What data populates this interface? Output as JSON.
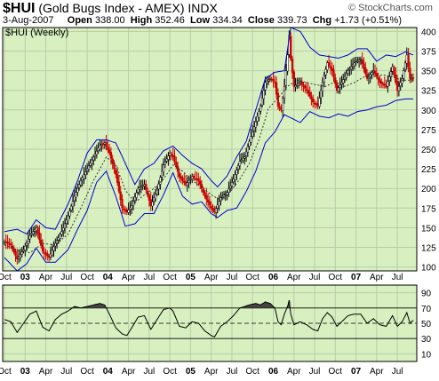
{
  "header": {
    "symbol": "$HUI",
    "name": "(Gold Bugs Index - AMEX)",
    "exchange": "INDX",
    "site": "© StockCharts.com",
    "date": "3-Aug-2007",
    "open_label": "Open",
    "open": "338.00",
    "high_label": "High",
    "high": "352.46",
    "low_label": "Low",
    "low": "334.34",
    "close_label": "Close",
    "close": "339.73",
    "chg_label": "Chg",
    "chg": "+1.73 (+0.51%)",
    "panel_label": "$HUI (Weekly)"
  },
  "colors": {
    "panel_bg": "#d8f0c0",
    "grid": "#b8cca8",
    "up_bar": "#000000",
    "down_bar": "#cc0000",
    "bollinger_band": "#0000cc",
    "moving_average": "#333333",
    "rsi_line": "#000000",
    "rsi_fill": "#444444"
  },
  "chart_data": [
    {
      "type": "candlestick",
      "title": "$HUI (Weekly)",
      "y_axis_side": "right",
      "ylim": [
        95,
        405
      ],
      "y_ticks": [
        100,
        125,
        150,
        175,
        200,
        225,
        250,
        275,
        300,
        325,
        350,
        375,
        400
      ],
      "x_ticks": [
        "Oct",
        "03",
        "Apr",
        "Jul",
        "Oct",
        "04",
        "Apr",
        "Jul",
        "Oct",
        "05",
        "Apr",
        "Jul",
        "Oct",
        "06",
        "Apr",
        "Jul",
        "Oct",
        "07",
        "Apr",
        "Jul"
      ],
      "bold_x_ticks": [
        "03",
        "04",
        "05",
        "06",
        "07"
      ],
      "x_range_weeks": [
        0,
        257
      ],
      "x_tick_weeks": [
        0,
        13,
        26,
        39,
        52,
        65,
        78,
        91,
        104,
        117,
        130,
        143,
        156,
        169,
        182,
        195,
        208,
        221,
        234,
        247
      ],
      "close_anchors": [
        [
          0,
          132
        ],
        [
          4,
          128
        ],
        [
          8,
          110
        ],
        [
          12,
          122
        ],
        [
          16,
          140
        ],
        [
          20,
          150
        ],
        [
          24,
          120
        ],
        [
          28,
          112
        ],
        [
          32,
          130
        ],
        [
          36,
          145
        ],
        [
          40,
          165
        ],
        [
          44,
          190
        ],
        [
          48,
          210
        ],
        [
          52,
          225
        ],
        [
          56,
          240
        ],
        [
          60,
          255
        ],
        [
          63,
          258
        ],
        [
          66,
          245
        ],
        [
          70,
          218
        ],
        [
          74,
          175
        ],
        [
          77,
          170
        ],
        [
          80,
          178
        ],
        [
          84,
          200
        ],
        [
          88,
          205
        ],
        [
          92,
          178
        ],
        [
          96,
          198
        ],
        [
          100,
          230
        ],
        [
          104,
          245
        ],
        [
          106,
          240
        ],
        [
          110,
          215
        ],
        [
          114,
          205
        ],
        [
          118,
          215
        ],
        [
          122,
          210
        ],
        [
          126,
          190
        ],
        [
          130,
          175
        ],
        [
          132,
          170
        ],
        [
          136,
          188
        ],
        [
          140,
          195
        ],
        [
          144,
          212
        ],
        [
          148,
          235
        ],
        [
          151,
          240
        ],
        [
          154,
          260
        ],
        [
          158,
          285
        ],
        [
          161,
          305
        ],
        [
          164,
          335
        ],
        [
          167,
          340
        ],
        [
          170,
          335
        ],
        [
          172,
          305
        ],
        [
          174,
          300
        ],
        [
          176,
          330
        ],
        [
          178,
          370
        ],
        [
          179,
          395
        ],
        [
          180,
          365
        ],
        [
          182,
          330
        ],
        [
          186,
          335
        ],
        [
          190,
          325
        ],
        [
          194,
          310
        ],
        [
          197,
          305
        ],
        [
          200,
          335
        ],
        [
          203,
          360
        ],
        [
          206,
          350
        ],
        [
          209,
          325
        ],
        [
          212,
          335
        ],
        [
          216,
          350
        ],
        [
          220,
          360
        ],
        [
          224,
          365
        ],
        [
          228,
          340
        ],
        [
          232,
          350
        ],
        [
          236,
          335
        ],
        [
          240,
          330
        ],
        [
          244,
          355
        ],
        [
          247,
          325
        ],
        [
          250,
          340
        ],
        [
          253,
          370
        ],
        [
          255,
          340
        ],
        [
          257,
          340
        ]
      ],
      "bollinger_upper_anchors": [
        [
          0,
          145
        ],
        [
          8,
          148
        ],
        [
          14,
          142
        ],
        [
          20,
          160
        ],
        [
          26,
          150
        ],
        [
          32,
          148
        ],
        [
          40,
          180
        ],
        [
          46,
          210
        ],
        [
          52,
          245
        ],
        [
          58,
          262
        ],
        [
          64,
          262
        ],
        [
          70,
          258
        ],
        [
          76,
          232
        ],
        [
          82,
          205
        ],
        [
          88,
          225
        ],
        [
          94,
          232
        ],
        [
          100,
          248
        ],
        [
          106,
          254
        ],
        [
          112,
          242
        ],
        [
          118,
          232
        ],
        [
          124,
          225
        ],
        [
          130,
          210
        ],
        [
          134,
          202
        ],
        [
          140,
          216
        ],
        [
          146,
          240
        ],
        [
          152,
          260
        ],
        [
          158,
          300
        ],
        [
          164,
          340
        ],
        [
          170,
          348
        ],
        [
          176,
          350
        ],
        [
          180,
          405
        ],
        [
          186,
          400
        ],
        [
          192,
          380
        ],
        [
          198,
          370
        ],
        [
          204,
          368
        ],
        [
          210,
          366
        ],
        [
          216,
          370
        ],
        [
          222,
          378
        ],
        [
          228,
          378
        ],
        [
          234,
          362
        ],
        [
          240,
          370
        ],
        [
          246,
          368
        ],
        [
          252,
          374
        ],
        [
          257,
          370
        ]
      ],
      "bollinger_lower_anchors": [
        [
          0,
          112
        ],
        [
          8,
          95
        ],
        [
          14,
          104
        ],
        [
          20,
          124
        ],
        [
          26,
          106
        ],
        [
          32,
          106
        ],
        [
          40,
          122
        ],
        [
          46,
          148
        ],
        [
          52,
          172
        ],
        [
          58,
          208
        ],
        [
          64,
          222
        ],
        [
          70,
          190
        ],
        [
          76,
          152
        ],
        [
          82,
          155
        ],
        [
          88,
          168
        ],
        [
          94,
          168
        ],
        [
          100,
          192
        ],
        [
          106,
          220
        ],
        [
          112,
          190
        ],
        [
          118,
          180
        ],
        [
          124,
          183
        ],
        [
          130,
          168
        ],
        [
          134,
          163
        ],
        [
          140,
          172
        ],
        [
          146,
          175
        ],
        [
          152,
          196
        ],
        [
          158,
          222
        ],
        [
          164,
          258
        ],
        [
          170,
          272
        ],
        [
          176,
          294
        ],
        [
          180,
          290
        ],
        [
          186,
          284
        ],
        [
          192,
          298
        ],
        [
          198,
          292
        ],
        [
          204,
          290
        ],
        [
          210,
          295
        ],
        [
          216,
          292
        ],
        [
          222,
          298
        ],
        [
          228,
          300
        ],
        [
          234,
          304
        ],
        [
          240,
          306
        ],
        [
          246,
          312
        ],
        [
          252,
          314
        ],
        [
          257,
          314
        ]
      ],
      "moving_average_anchors": [
        [
          0,
          128
        ],
        [
          8,
          122
        ],
        [
          16,
          118
        ],
        [
          24,
          130
        ],
        [
          32,
          128
        ],
        [
          40,
          142
        ],
        [
          48,
          175
        ],
        [
          56,
          210
        ],
        [
          64,
          240
        ],
        [
          70,
          230
        ],
        [
          76,
          198
        ],
        [
          82,
          182
        ],
        [
          88,
          192
        ],
        [
          94,
          200
        ],
        [
          100,
          212
        ],
        [
          106,
          230
        ],
        [
          112,
          222
        ],
        [
          118,
          210
        ],
        [
          124,
          202
        ],
        [
          130,
          192
        ],
        [
          136,
          185
        ],
        [
          142,
          196
        ],
        [
          148,
          212
        ],
        [
          154,
          232
        ],
        [
          160,
          262
        ],
        [
          166,
          302
        ],
        [
          172,
          315
        ],
        [
          178,
          330
        ],
        [
          184,
          338
        ],
        [
          190,
          335
        ],
        [
          196,
          332
        ],
        [
          202,
          330
        ],
        [
          208,
          336
        ],
        [
          214,
          330
        ],
        [
          220,
          335
        ],
        [
          226,
          342
        ],
        [
          232,
          342
        ],
        [
          238,
          345
        ],
        [
          244,
          342
        ],
        [
          250,
          338
        ],
        [
          257,
          338
        ]
      ]
    },
    {
      "type": "line",
      "title": "RSI",
      "y_axis_side": "right",
      "ylim": [
        0,
        100
      ],
      "y_ticks": [
        10,
        30,
        50,
        70,
        90
      ],
      "reference_lines": [
        30,
        50,
        70
      ],
      "x_ticks": [
        "Oct",
        "03",
        "Apr",
        "Jul",
        "Oct",
        "04",
        "Apr",
        "Jul",
        "Oct",
        "05",
        "Apr",
        "Jul",
        "Oct",
        "06",
        "Apr",
        "Jul",
        "Oct",
        "07",
        "Apr",
        "Jul"
      ],
      "bold_x_ticks": [
        "03",
        "04",
        "05",
        "06",
        "07"
      ],
      "rsi_anchors": [
        [
          0,
          55
        ],
        [
          4,
          52
        ],
        [
          8,
          38
        ],
        [
          12,
          50
        ],
        [
          16,
          62
        ],
        [
          20,
          66
        ],
        [
          24,
          45
        ],
        [
          28,
          40
        ],
        [
          32,
          55
        ],
        [
          36,
          62
        ],
        [
          40,
          66
        ],
        [
          44,
          72
        ],
        [
          48,
          70
        ],
        [
          52,
          72
        ],
        [
          56,
          74
        ],
        [
          60,
          76
        ],
        [
          63,
          74
        ],
        [
          66,
          62
        ],
        [
          70,
          44
        ],
        [
          74,
          36
        ],
        [
          77,
          34
        ],
        [
          80,
          44
        ],
        [
          84,
          58
        ],
        [
          88,
          60
        ],
        [
          92,
          42
        ],
        [
          96,
          55
        ],
        [
          100,
          68
        ],
        [
          104,
          70
        ],
        [
          106,
          66
        ],
        [
          110,
          46
        ],
        [
          114,
          44
        ],
        [
          118,
          52
        ],
        [
          122,
          50
        ],
        [
          126,
          40
        ],
        [
          130,
          34
        ],
        [
          132,
          32
        ],
        [
          136,
          46
        ],
        [
          140,
          52
        ],
        [
          144,
          60
        ],
        [
          148,
          70
        ],
        [
          151,
          72
        ],
        [
          154,
          74
        ],
        [
          158,
          76
        ],
        [
          161,
          74
        ],
        [
          164,
          78
        ],
        [
          167,
          76
        ],
        [
          170,
          70
        ],
        [
          172,
          52
        ],
        [
          174,
          48
        ],
        [
          176,
          62
        ],
        [
          178,
          72
        ],
        [
          179,
          80
        ],
        [
          180,
          62
        ],
        [
          182,
          48
        ],
        [
          186,
          52
        ],
        [
          190,
          48
        ],
        [
          194,
          42
        ],
        [
          197,
          40
        ],
        [
          200,
          56
        ],
        [
          203,
          64
        ],
        [
          206,
          58
        ],
        [
          209,
          46
        ],
        [
          212,
          52
        ],
        [
          216,
          60
        ],
        [
          220,
          62
        ],
        [
          224,
          62
        ],
        [
          228,
          50
        ],
        [
          232,
          56
        ],
        [
          236,
          48
        ],
        [
          240,
          46
        ],
        [
          244,
          60
        ],
        [
          247,
          46
        ],
        [
          250,
          52
        ],
        [
          253,
          64
        ],
        [
          255,
          50
        ],
        [
          257,
          54
        ]
      ]
    }
  ]
}
